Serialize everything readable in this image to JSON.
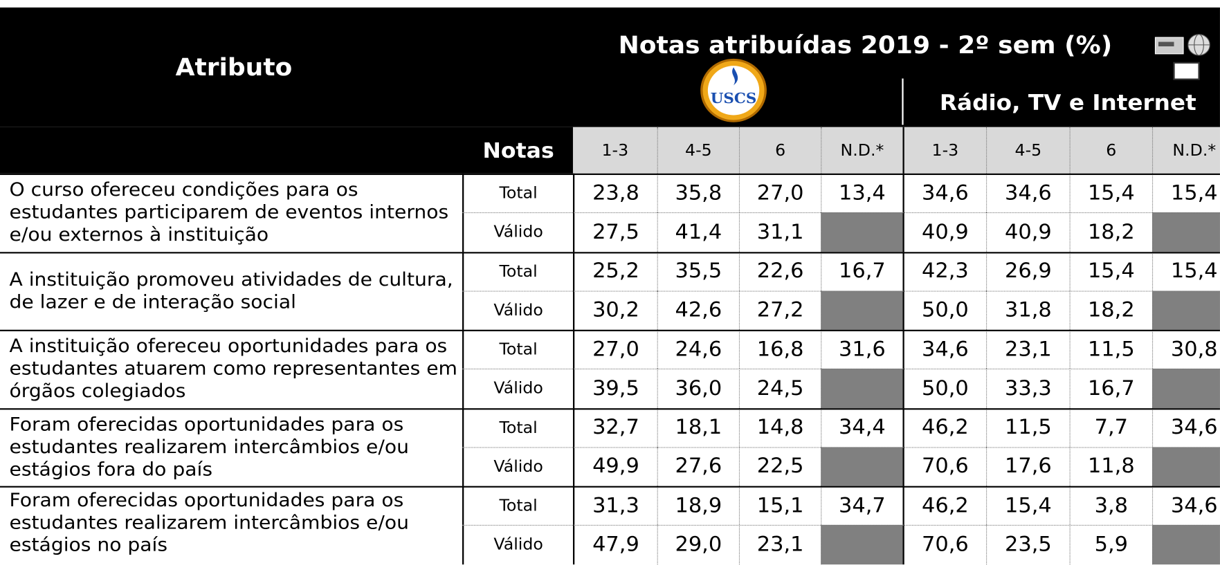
{
  "header": {
    "attribute_label": "Atributo",
    "title": "Notas atribuídas 2019 - 2º sem (%)",
    "logo_text": "USCS",
    "media_label": "Rádio, TV e Internet",
    "notas_label": "Notas",
    "columns": [
      "1-3",
      "4-5",
      "6",
      "N.D.*",
      "1-3",
      "4-5",
      "6",
      "N.D.*"
    ]
  },
  "table": {
    "rows": [
      {
        "attribute": "O curso ofereceu condições para os estudantes participarem de eventos internos e/ou externos à instituição",
        "sub": [
          {
            "label": "Total",
            "values": [
              "23,8",
              "35,8",
              "27,0",
              "13,4",
              "34,6",
              "34,6",
              "15,4",
              "15,4"
            ]
          },
          {
            "label": "Válido",
            "values": [
              "27,5",
              "41,4",
              "31,1",
              null,
              "40,9",
              "40,9",
              "18,2",
              null
            ]
          }
        ]
      },
      {
        "attribute": "A instituição promoveu atividades de cultura, de lazer e de interação social",
        "sub": [
          {
            "label": "Total",
            "values": [
              "25,2",
              "35,5",
              "22,6",
              "16,7",
              "42,3",
              "26,9",
              "15,4",
              "15,4"
            ]
          },
          {
            "label": "Válido",
            "values": [
              "30,2",
              "42,6",
              "27,2",
              null,
              "50,0",
              "31,8",
              "18,2",
              null
            ]
          }
        ]
      },
      {
        "attribute": "A instituição ofereceu oportunidades para os estudantes atuarem como representantes em órgãos colegiados",
        "sub": [
          {
            "label": "Total",
            "values": [
              "27,0",
              "24,6",
              "16,8",
              "31,6",
              "34,6",
              "23,1",
              "11,5",
              "30,8"
            ]
          },
          {
            "label": "Válido",
            "values": [
              "39,5",
              "36,0",
              "24,5",
              null,
              "50,0",
              "33,3",
              "16,7",
              null
            ]
          }
        ]
      },
      {
        "attribute": "Foram oferecidas oportunidades para os estudantes realizarem intercâmbios e/ou estágios fora do país",
        "sub": [
          {
            "label": "Total",
            "values": [
              "32,7",
              "18,1",
              "14,8",
              "34,4",
              "46,2",
              "11,5",
              "7,7",
              "34,6"
            ]
          },
          {
            "label": "Válido",
            "values": [
              "49,9",
              "27,6",
              "22,5",
              null,
              "70,6",
              "17,6",
              "11,8",
              null
            ]
          }
        ]
      },
      {
        "attribute": "Foram oferecidas oportunidades para os estudantes realizarem intercâmbios e/ou estágios no país",
        "sub": [
          {
            "label": "Total",
            "values": [
              "31,3",
              "18,9",
              "15,1",
              "34,7",
              "46,2",
              "15,4",
              "3,8",
              "34,6"
            ]
          },
          {
            "label": "Válido",
            "values": [
              "47,9",
              "29,0",
              "23,1",
              null,
              "70,6",
              "23,5",
              "5,9",
              null
            ]
          }
        ]
      }
    ]
  }
}
